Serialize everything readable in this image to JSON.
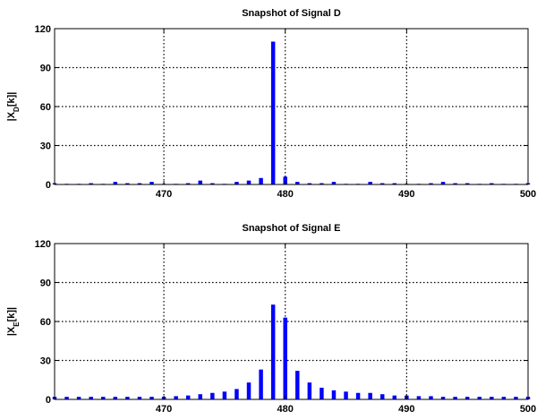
{
  "chart_data": [
    {
      "type": "bar",
      "title": "Snapshot of Signal D",
      "ylabel_main": "|X",
      "ylabel_sub": "D",
      "ylabel_tail": "[k]|",
      "xlim": [
        461,
        500
      ],
      "ylim": [
        0,
        120
      ],
      "xticks": [
        470,
        480,
        490,
        500
      ],
      "yticks": [
        0,
        30,
        60,
        90,
        120
      ],
      "grid": true,
      "bar_color": "#0000ff",
      "x": [
        461,
        462,
        463,
        464,
        465,
        466,
        467,
        468,
        469,
        470,
        471,
        472,
        473,
        474,
        475,
        476,
        477,
        478,
        479,
        480,
        481,
        482,
        483,
        484,
        485,
        486,
        487,
        488,
        489,
        490,
        491,
        492,
        493,
        494,
        495,
        496,
        497,
        498,
        499,
        500
      ],
      "values": [
        1,
        0.5,
        0.5,
        1,
        0.5,
        2,
        1,
        1,
        2,
        0.5,
        0.5,
        1,
        3,
        1,
        0.5,
        2,
        3,
        5,
        110,
        6,
        2,
        1,
        1,
        2,
        0.5,
        0.5,
        2,
        1,
        1,
        0.5,
        0.5,
        1,
        2,
        1,
        1,
        0.5,
        1,
        0.5,
        0.5,
        1
      ]
    },
    {
      "type": "bar",
      "title": "Snapshot of Signal E",
      "ylabel_main": "|X",
      "ylabel_sub": "E",
      "ylabel_tail": "[k]|",
      "xlim": [
        461,
        500
      ],
      "ylim": [
        0,
        120
      ],
      "xticks": [
        470,
        480,
        490,
        500
      ],
      "yticks": [
        0,
        30,
        60,
        90,
        120
      ],
      "grid": true,
      "bar_color": "#0000ff",
      "x": [
        461,
        462,
        463,
        464,
        465,
        466,
        467,
        468,
        469,
        470,
        471,
        472,
        473,
        474,
        475,
        476,
        477,
        478,
        479,
        480,
        481,
        482,
        483,
        484,
        485,
        486,
        487,
        488,
        489,
        490,
        491,
        492,
        493,
        494,
        495,
        496,
        497,
        498,
        499,
        500
      ],
      "values": [
        2,
        2,
        2,
        2,
        2,
        2,
        2,
        2,
        2,
        2,
        2.5,
        3,
        4,
        5,
        6,
        8,
        13,
        23,
        73,
        63,
        22,
        13,
        9,
        7,
        6,
        5,
        5,
        4,
        3,
        3,
        2.5,
        2.5,
        2,
        2,
        2,
        2,
        2,
        2,
        2,
        2
      ]
    }
  ]
}
